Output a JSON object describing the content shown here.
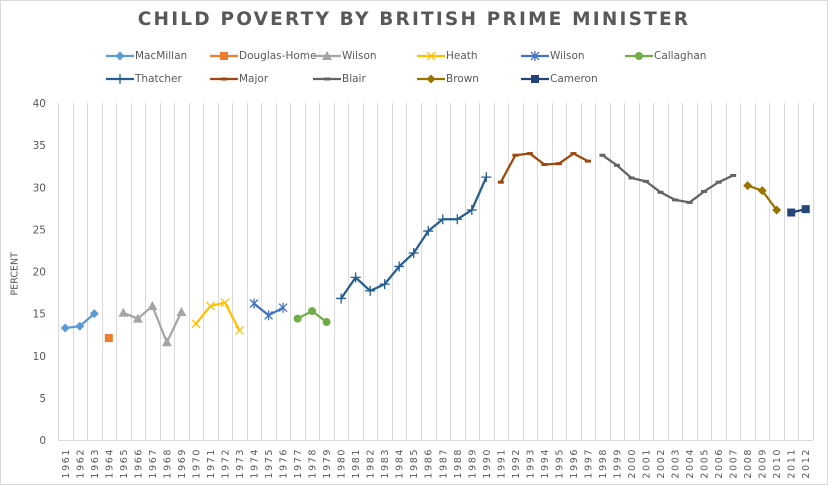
{
  "chart_data": {
    "type": "line",
    "title": "CHILD POVERTY BY BRITISH PRIME MINISTER",
    "xlabel": "",
    "ylabel": "PERCENT",
    "ylim": [
      0,
      40
    ],
    "yticks": [
      0,
      5,
      10,
      15,
      20,
      25,
      30,
      35,
      40
    ],
    "grid": "vertical",
    "legend_position": "top",
    "categories": [
      "1961",
      "1962",
      "1963",
      "1964",
      "1965",
      "1966",
      "1967",
      "1968",
      "1969",
      "1970",
      "1971",
      "1972",
      "1973",
      "1974",
      "1975",
      "1976",
      "1977",
      "1978",
      "1979",
      "1980",
      "1981",
      "1982",
      "1983",
      "1984",
      "1985",
      "1986",
      "1987",
      "1988",
      "1989",
      "1990",
      "1991",
      "1992",
      "1993",
      "1994",
      "1995",
      "1996",
      "1997",
      "1998",
      "1999",
      "2000",
      "2001",
      "2002",
      "2003",
      "2004",
      "2005",
      "2006",
      "2007",
      "2008",
      "2009",
      "2010",
      "2011",
      "2012"
    ],
    "series": [
      {
        "name": "MacMillan",
        "color": "#5b9bd5",
        "marker": "diamond",
        "x": [
          "1961",
          "1962",
          "1963"
        ],
        "values": [
          13.3,
          13.5,
          15.0
        ]
      },
      {
        "name": "Douglas-Home",
        "color": "#ed7d31",
        "marker": "square",
        "x": [
          "1964"
        ],
        "values": [
          12.1
        ]
      },
      {
        "name": "Wilson",
        "color": "#a5a5a5",
        "marker": "triangle",
        "x": [
          "1965",
          "1966",
          "1967",
          "1968",
          "1969"
        ],
        "values": [
          15.1,
          14.4,
          15.9,
          11.6,
          15.2
        ]
      },
      {
        "name": "Heath",
        "color": "#ffc000",
        "marker": "x",
        "x": [
          "1970",
          "1971",
          "1972",
          "1973"
        ],
        "values": [
          13.8,
          15.9,
          16.3,
          13.0
        ]
      },
      {
        "name": "Wilson",
        "color": "#4472c4",
        "marker": "star",
        "x": [
          "1974",
          "1975",
          "1976"
        ],
        "values": [
          16.2,
          14.8,
          15.7
        ]
      },
      {
        "name": "Callaghan",
        "color": "#70ad47",
        "marker": "circle",
        "x": [
          "1977",
          "1978",
          "1979"
        ],
        "values": [
          14.4,
          15.3,
          14.0
        ]
      },
      {
        "name": "Thatcher",
        "color": "#255e91",
        "marker": "plus",
        "x": [
          "1980",
          "1981",
          "1982",
          "1983",
          "1984",
          "1985",
          "1986",
          "1987",
          "1988",
          "1989",
          "1990"
        ],
        "values": [
          16.8,
          19.3,
          17.7,
          18.5,
          20.6,
          22.2,
          24.8,
          26.2,
          26.2,
          27.3,
          31.2
        ]
      },
      {
        "name": "Major",
        "color": "#9e480e",
        "marker": "dash",
        "x": [
          "1991",
          "1992",
          "1993",
          "1994",
          "1995",
          "1996",
          "1997"
        ],
        "values": [
          30.6,
          33.8,
          34.0,
          32.7,
          32.8,
          34.0,
          33.1
        ]
      },
      {
        "name": "Blair",
        "color": "#636363",
        "marker": "dash",
        "x": [
          "1998",
          "1999",
          "2000",
          "2001",
          "2002",
          "2003",
          "2004",
          "2005",
          "2006",
          "2007"
        ],
        "values": [
          33.8,
          32.6,
          31.1,
          30.7,
          29.4,
          28.5,
          28.2,
          29.5,
          30.6,
          31.4
        ]
      },
      {
        "name": "Brown",
        "color": "#997300",
        "marker": "diamond",
        "x": [
          "2008",
          "2009",
          "2010"
        ],
        "values": [
          30.2,
          29.6,
          27.3
        ]
      },
      {
        "name": "Cameron",
        "color": "#264478",
        "marker": "square",
        "x": [
          "2011",
          "2012"
        ],
        "values": [
          27.0,
          27.4
        ]
      }
    ]
  }
}
